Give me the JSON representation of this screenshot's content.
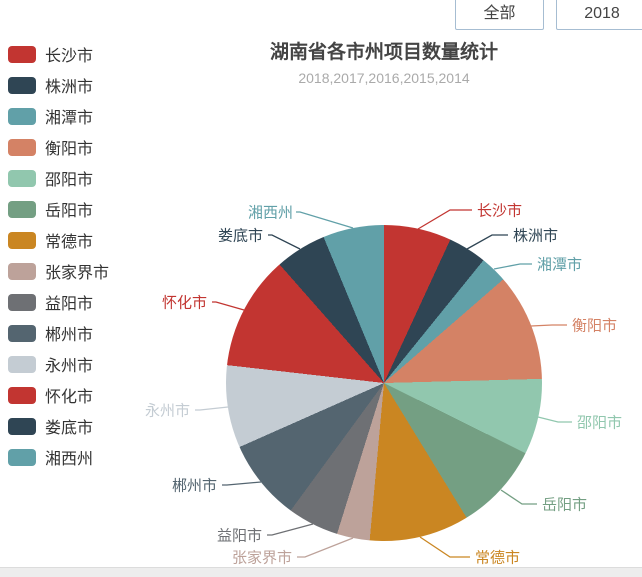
{
  "toolbar": {
    "all_button": "全部",
    "year_button": "2018"
  },
  "chart": {
    "title": "湖南省各市州项目数量统计",
    "subtitle": "2018,2017,2016,2015,2014"
  },
  "chart_data": {
    "type": "pie",
    "title": "湖南省各市州项目数量统计",
    "subtitle": "2018,2017,2016,2015,2014",
    "legend_position": "left",
    "start_angle_deg": 0,
    "items": [
      {
        "name": "长沙市",
        "percent": 6.9,
        "angle_deg": 24.8,
        "color": "#c23531"
      },
      {
        "name": "株洲市",
        "percent": 3.9,
        "angle_deg": 14.2,
        "color": "#2f4554"
      },
      {
        "name": "湘潭市",
        "percent": 2.8,
        "angle_deg": 10.0,
        "color": "#61a0a8"
      },
      {
        "name": "衡阳市",
        "percent": 11.0,
        "angle_deg": 39.5,
        "color": "#d48265"
      },
      {
        "name": "邵阳市",
        "percent": 7.7,
        "angle_deg": 27.9,
        "color": "#91c7ae"
      },
      {
        "name": "岳阳市",
        "percent": 8.9,
        "angle_deg": 32.1,
        "color": "#749f83"
      },
      {
        "name": "常德市",
        "percent": 10.2,
        "angle_deg": 36.7,
        "color": "#ca8622"
      },
      {
        "name": "张家界市",
        "percent": 3.4,
        "angle_deg": 12.1,
        "color": "#bda29a"
      },
      {
        "name": "益阳市",
        "percent": 5.3,
        "angle_deg": 18.9,
        "color": "#6e7074"
      },
      {
        "name": "郴州市",
        "percent": 8.3,
        "angle_deg": 29.9,
        "color": "#546570"
      },
      {
        "name": "永州市",
        "percent": 8.4,
        "angle_deg": 30.4,
        "color": "#c4ccd3"
      },
      {
        "name": "怀化市",
        "percent": 11.7,
        "angle_deg": 42.1,
        "color": "#c23531"
      },
      {
        "name": "娄底市",
        "percent": 5.3,
        "angle_deg": 18.9,
        "color": "#2f4554"
      },
      {
        "name": "湘西州",
        "percent": 6.3,
        "angle_deg": 22.5,
        "color": "#61a0a8"
      }
    ]
  }
}
